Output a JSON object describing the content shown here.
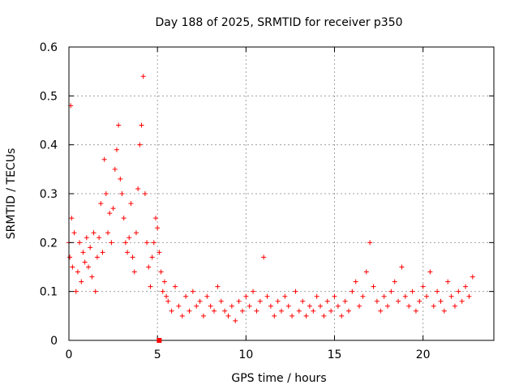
{
  "chart_data": {
    "type": "scatter",
    "title": "Day 188 of 2025, SRMTID for receiver p350",
    "xlabel": "GPS time / hours",
    "ylabel": "SRMTID / TECUs",
    "xlim": [
      0,
      24
    ],
    "ylim": [
      0,
      0.6
    ],
    "xticks": [
      0,
      5,
      10,
      15,
      20
    ],
    "yticks": [
      0,
      0.1,
      0.2,
      0.3,
      0.4,
      0.5,
      0.6
    ],
    "xtick_labels": [
      "0",
      "5",
      "10",
      "15",
      "20"
    ],
    "ytick_labels": [
      "0",
      "0.1",
      "0.2",
      "0.3",
      "0.4",
      "0.5",
      "0.6"
    ],
    "grid": true,
    "marker": "+",
    "color": "#ff0000",
    "series": [
      {
        "name": "SRMTID",
        "x": [
          0.0,
          0.05,
          0.1,
          0.15,
          0.2,
          0.3,
          0.4,
          0.5,
          0.6,
          0.7,
          0.8,
          0.9,
          1.0,
          1.1,
          1.2,
          1.3,
          1.4,
          1.5,
          1.6,
          1.7,
          1.8,
          1.9,
          2.0,
          2.1,
          2.2,
          2.3,
          2.4,
          2.5,
          2.6,
          2.7,
          2.8,
          2.9,
          3.0,
          3.1,
          3.2,
          3.3,
          3.4,
          3.5,
          3.6,
          3.7,
          3.8,
          3.9,
          4.0,
          4.1,
          4.2,
          4.3,
          4.4,
          4.5,
          4.6,
          4.7,
          4.8,
          4.9,
          5.0,
          5.1,
          5.2,
          5.3,
          5.4,
          5.5,
          5.6,
          5.8,
          6.0,
          6.2,
          6.4,
          6.6,
          6.8,
          7.0,
          7.2,
          7.4,
          7.6,
          7.8,
          8.0,
          8.2,
          8.4,
          8.6,
          8.8,
          9.0,
          9.2,
          9.4,
          9.6,
          9.8,
          10.0,
          10.2,
          10.4,
          10.6,
          10.8,
          11.0,
          11.2,
          11.4,
          11.6,
          11.8,
          12.0,
          12.2,
          12.4,
          12.6,
          12.8,
          13.0,
          13.2,
          13.4,
          13.6,
          13.8,
          14.0,
          14.2,
          14.4,
          14.6,
          14.8,
          15.0,
          15.2,
          15.4,
          15.6,
          15.8,
          16.0,
          16.2,
          16.4,
          16.6,
          16.8,
          17.0,
          17.2,
          17.4,
          17.6,
          17.8,
          18.0,
          18.2,
          18.4,
          18.6,
          18.8,
          19.0,
          19.2,
          19.4,
          19.6,
          19.8,
          20.0,
          20.2,
          20.4,
          20.6,
          20.8,
          21.0,
          21.2,
          21.4,
          21.6,
          21.8,
          22.0,
          22.2,
          22.4,
          22.6,
          22.8
        ],
        "y": [
          0.2,
          0.17,
          0.48,
          0.25,
          0.15,
          0.22,
          0.1,
          0.14,
          0.2,
          0.12,
          0.18,
          0.16,
          0.21,
          0.15,
          0.19,
          0.13,
          0.22,
          0.1,
          0.17,
          0.21,
          0.28,
          0.18,
          0.37,
          0.3,
          0.22,
          0.26,
          0.2,
          0.27,
          0.35,
          0.39,
          0.44,
          0.33,
          0.3,
          0.25,
          0.2,
          0.18,
          0.21,
          0.28,
          0.17,
          0.14,
          0.22,
          0.31,
          0.4,
          0.44,
          0.54,
          0.3,
          0.2,
          0.15,
          0.11,
          0.17,
          0.2,
          0.25,
          0.23,
          0.18,
          0.14,
          0.1,
          0.12,
          0.09,
          0.08,
          0.06,
          0.11,
          0.07,
          0.05,
          0.09,
          0.06,
          0.1,
          0.07,
          0.08,
          0.05,
          0.09,
          0.07,
          0.06,
          0.11,
          0.08,
          0.06,
          0.05,
          0.07,
          0.04,
          0.08,
          0.06,
          0.09,
          0.07,
          0.1,
          0.06,
          0.08,
          0.17,
          0.09,
          0.07,
          0.05,
          0.08,
          0.06,
          0.09,
          0.07,
          0.05,
          0.1,
          0.06,
          0.08,
          0.05,
          0.07,
          0.06,
          0.09,
          0.07,
          0.05,
          0.08,
          0.06,
          0.09,
          0.07,
          0.05,
          0.08,
          0.06,
          0.1,
          0.12,
          0.07,
          0.09,
          0.14,
          0.2,
          0.11,
          0.08,
          0.06,
          0.09,
          0.07,
          0.1,
          0.12,
          0.08,
          0.15,
          0.09,
          0.07,
          0.1,
          0.06,
          0.08,
          0.11,
          0.09,
          0.14,
          0.07,
          0.1,
          0.08,
          0.06,
          0.12,
          0.09,
          0.07,
          0.1,
          0.08,
          0.11,
          0.09,
          0.13
        ]
      }
    ],
    "annotations": [
      {
        "kind": "filled-square-marker",
        "x": 5.1,
        "y": 0.0
      }
    ]
  }
}
